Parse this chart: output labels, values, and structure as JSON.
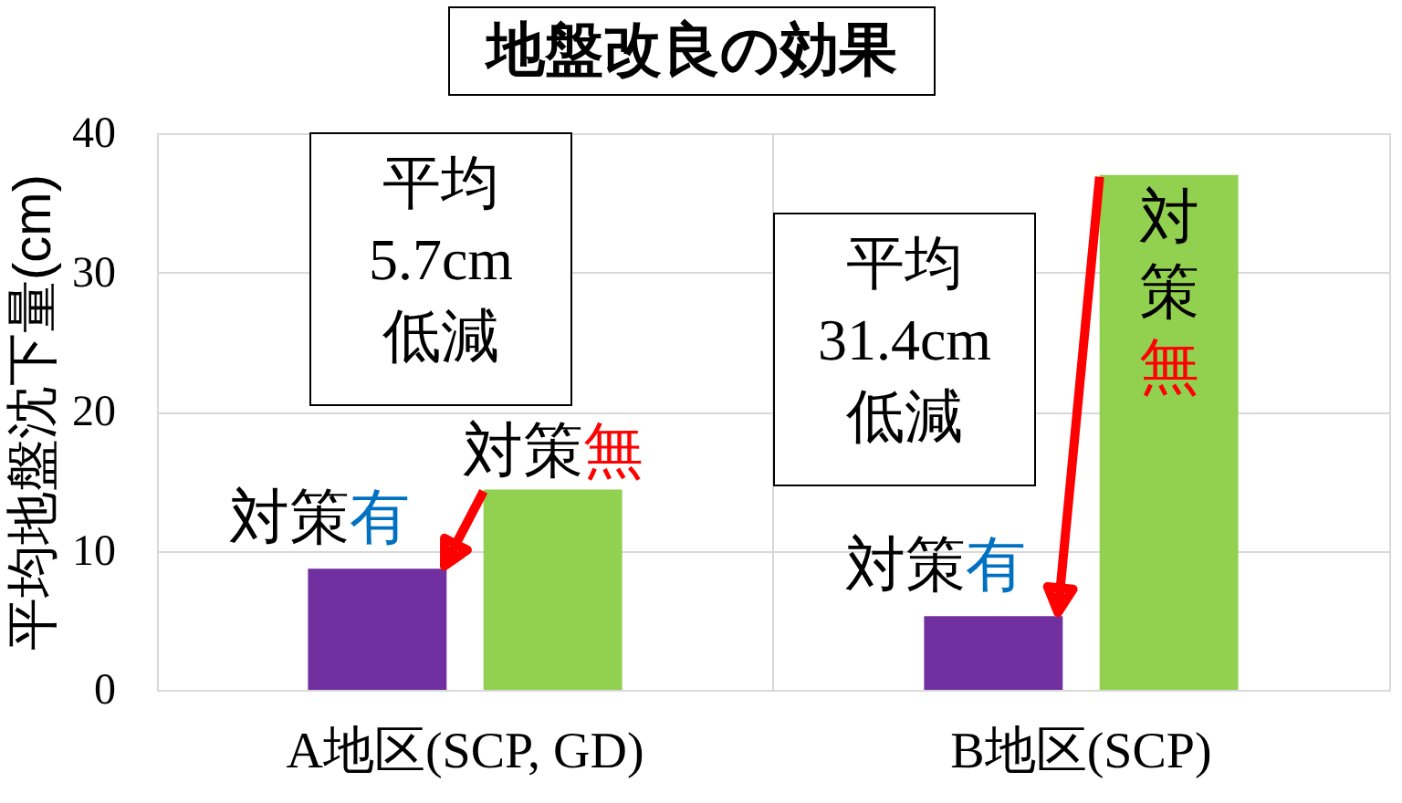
{
  "chart_data": {
    "type": "bar",
    "title": "地盤改良の効果",
    "ylabel": "平均地盤沈下量(cm)",
    "categories": [
      "A地区(SCP, GD)",
      "B地区(SCP)"
    ],
    "series": [
      {
        "name": "対策有",
        "color": "#7030a0",
        "values": [
          8.7,
          5.3
        ]
      },
      {
        "name": "対策無",
        "color": "#92d050",
        "values": [
          14.4,
          37.0
        ]
      }
    ],
    "ylim": [
      0,
      40
    ],
    "yticks": [
      0,
      10,
      20,
      30,
      40
    ],
    "grid": true,
    "annotations": [
      "平均\n5.7cm\n低減",
      "平均\n31.4cm\n低減"
    ]
  }
}
